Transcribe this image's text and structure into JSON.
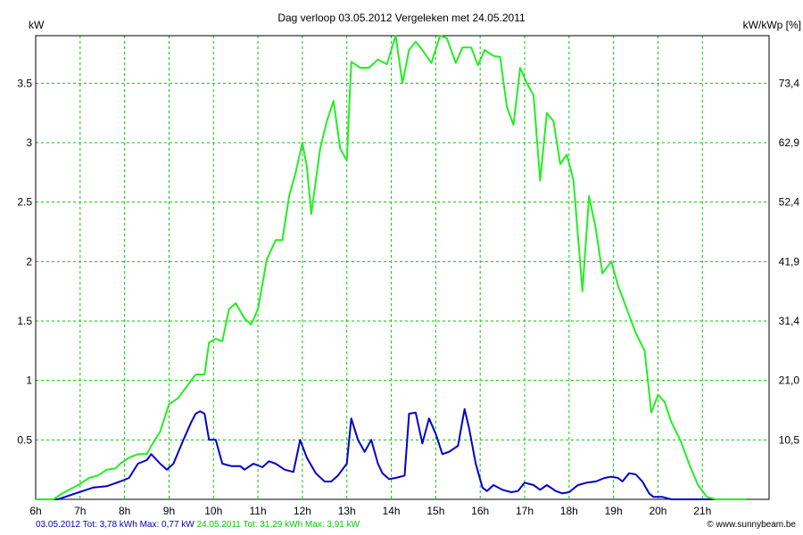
{
  "chart_data": {
    "type": "line",
    "title": "Dag  verloop 03.05.2012   Vergeleken met 24.05.2011",
    "ylabel_left": "kW",
    "ylabel_right": "kW/kWp [%]",
    "xlim": [
      6,
      22.5
    ],
    "ylim": [
      0,
      3.9
    ],
    "grid": true,
    "x_ticks": [
      {
        "x": 6,
        "label": "6h"
      },
      {
        "x": 7,
        "label": "7h"
      },
      {
        "x": 8,
        "label": "8h"
      },
      {
        "x": 9,
        "label": "9h"
      },
      {
        "x": 10,
        "label": "10h"
      },
      {
        "x": 11,
        "label": "11h"
      },
      {
        "x": 12,
        "label": "12h"
      },
      {
        "x": 13,
        "label": "13h"
      },
      {
        "x": 14,
        "label": "14h"
      },
      {
        "x": 15,
        "label": "15h"
      },
      {
        "x": 16,
        "label": "16h"
      },
      {
        "x": 17,
        "label": "17h"
      },
      {
        "x": 18,
        "label": "18h"
      },
      {
        "x": 19,
        "label": "19h"
      },
      {
        "x": 20,
        "label": "20h"
      },
      {
        "x": 21,
        "label": "21h"
      }
    ],
    "y_ticks_left": [
      {
        "v": 0.5,
        "label": "0.5"
      },
      {
        "v": 1.0,
        "label": "1"
      },
      {
        "v": 1.5,
        "label": "1.5"
      },
      {
        "v": 2.0,
        "label": "2"
      },
      {
        "v": 2.5,
        "label": "2.5"
      },
      {
        "v": 3.0,
        "label": "3"
      },
      {
        "v": 3.5,
        "label": "3.5"
      }
    ],
    "y_ticks_right": [
      {
        "v": 0.5,
        "label": "10,5"
      },
      {
        "v": 1.0,
        "label": "21,0"
      },
      {
        "v": 1.5,
        "label": "31,4"
      },
      {
        "v": 2.0,
        "label": "41,9"
      },
      {
        "v": 2.5,
        "label": "52,4"
      },
      {
        "v": 3.0,
        "label": "62,9"
      },
      {
        "v": 3.5,
        "label": "73,4"
      }
    ],
    "series": [
      {
        "name": "03.05.2012",
        "color": "#0000cc",
        "points": [
          [
            6.0,
            0.0
          ],
          [
            6.5,
            0.0
          ],
          [
            6.9,
            0.05
          ],
          [
            7.3,
            0.1
          ],
          [
            7.6,
            0.11
          ],
          [
            7.9,
            0.15
          ],
          [
            8.1,
            0.18
          ],
          [
            8.3,
            0.3
          ],
          [
            8.5,
            0.33
          ],
          [
            8.6,
            0.38
          ],
          [
            8.8,
            0.3
          ],
          [
            8.95,
            0.25
          ],
          [
            9.1,
            0.3
          ],
          [
            9.3,
            0.48
          ],
          [
            9.5,
            0.65
          ],
          [
            9.6,
            0.72
          ],
          [
            9.7,
            0.74
          ],
          [
            9.8,
            0.72
          ],
          [
            9.9,
            0.5
          ],
          [
            10.05,
            0.5
          ],
          [
            10.2,
            0.3
          ],
          [
            10.4,
            0.28
          ],
          [
            10.6,
            0.28
          ],
          [
            10.7,
            0.25
          ],
          [
            10.9,
            0.3
          ],
          [
            11.1,
            0.27
          ],
          [
            11.25,
            0.32
          ],
          [
            11.4,
            0.3
          ],
          [
            11.6,
            0.25
          ],
          [
            11.8,
            0.23
          ],
          [
            11.95,
            0.5
          ],
          [
            12.1,
            0.35
          ],
          [
            12.3,
            0.22
          ],
          [
            12.5,
            0.15
          ],
          [
            12.65,
            0.15
          ],
          [
            12.8,
            0.2
          ],
          [
            13.0,
            0.3
          ],
          [
            13.1,
            0.68
          ],
          [
            13.25,
            0.5
          ],
          [
            13.4,
            0.4
          ],
          [
            13.55,
            0.5
          ],
          [
            13.7,
            0.3
          ],
          [
            13.8,
            0.22
          ],
          [
            13.95,
            0.17
          ],
          [
            14.1,
            0.18
          ],
          [
            14.3,
            0.2
          ],
          [
            14.4,
            0.72
          ],
          [
            14.55,
            0.73
          ],
          [
            14.7,
            0.47
          ],
          [
            14.85,
            0.68
          ],
          [
            15.0,
            0.55
          ],
          [
            15.15,
            0.38
          ],
          [
            15.3,
            0.4
          ],
          [
            15.5,
            0.45
          ],
          [
            15.65,
            0.76
          ],
          [
            15.75,
            0.6
          ],
          [
            15.9,
            0.3
          ],
          [
            16.05,
            0.1
          ],
          [
            16.15,
            0.07
          ],
          [
            16.3,
            0.12
          ],
          [
            16.5,
            0.08
          ],
          [
            16.7,
            0.06
          ],
          [
            16.85,
            0.07
          ],
          [
            17.0,
            0.14
          ],
          [
            17.2,
            0.12
          ],
          [
            17.35,
            0.08
          ],
          [
            17.5,
            0.12
          ],
          [
            17.7,
            0.07
          ],
          [
            17.85,
            0.05
          ],
          [
            18.0,
            0.06
          ],
          [
            18.2,
            0.12
          ],
          [
            18.4,
            0.14
          ],
          [
            18.6,
            0.15
          ],
          [
            18.8,
            0.18
          ],
          [
            18.95,
            0.19
          ],
          [
            19.1,
            0.18
          ],
          [
            19.2,
            0.15
          ],
          [
            19.35,
            0.22
          ],
          [
            19.5,
            0.21
          ],
          [
            19.65,
            0.15
          ],
          [
            19.8,
            0.05
          ],
          [
            19.9,
            0.02
          ],
          [
            20.1,
            0.02
          ],
          [
            20.3,
            0.0
          ],
          [
            21.0,
            0.0
          ],
          [
            22.0,
            0.0
          ]
        ]
      },
      {
        "name": "24.05.2011",
        "color": "#22ee22",
        "points": [
          [
            6.0,
            0.0
          ],
          [
            6.4,
            0.0
          ],
          [
            6.6,
            0.05
          ],
          [
            6.8,
            0.09
          ],
          [
            7.0,
            0.13
          ],
          [
            7.2,
            0.18
          ],
          [
            7.4,
            0.2
          ],
          [
            7.6,
            0.25
          ],
          [
            7.8,
            0.26
          ],
          [
            7.9,
            0.3
          ],
          [
            8.1,
            0.35
          ],
          [
            8.3,
            0.38
          ],
          [
            8.5,
            0.38
          ],
          [
            8.6,
            0.45
          ],
          [
            8.8,
            0.57
          ],
          [
            9.0,
            0.8
          ],
          [
            9.2,
            0.85
          ],
          [
            9.4,
            0.95
          ],
          [
            9.6,
            1.05
          ],
          [
            9.8,
            1.05
          ],
          [
            9.9,
            1.32
          ],
          [
            10.05,
            1.35
          ],
          [
            10.2,
            1.33
          ],
          [
            10.35,
            1.6
          ],
          [
            10.5,
            1.65
          ],
          [
            10.7,
            1.52
          ],
          [
            10.85,
            1.47
          ],
          [
            11.0,
            1.6
          ],
          [
            11.2,
            2.02
          ],
          [
            11.4,
            2.18
          ],
          [
            11.55,
            2.18
          ],
          [
            11.7,
            2.55
          ],
          [
            11.85,
            2.75
          ],
          [
            12.0,
            3.0
          ],
          [
            12.1,
            2.8
          ],
          [
            12.2,
            2.4
          ],
          [
            12.4,
            2.95
          ],
          [
            12.55,
            3.18
          ],
          [
            12.7,
            3.35
          ],
          [
            12.85,
            2.95
          ],
          [
            13.0,
            2.85
          ],
          [
            13.1,
            3.68
          ],
          [
            13.3,
            3.63
          ],
          [
            13.5,
            3.63
          ],
          [
            13.7,
            3.7
          ],
          [
            13.9,
            3.66
          ],
          [
            14.1,
            3.9
          ],
          [
            14.25,
            3.5
          ],
          [
            14.4,
            3.78
          ],
          [
            14.55,
            3.85
          ],
          [
            14.7,
            3.78
          ],
          [
            14.9,
            3.67
          ],
          [
            15.1,
            3.9
          ],
          [
            15.25,
            3.88
          ],
          [
            15.45,
            3.67
          ],
          [
            15.6,
            3.8
          ],
          [
            15.8,
            3.8
          ],
          [
            15.95,
            3.65
          ],
          [
            16.1,
            3.78
          ],
          [
            16.3,
            3.73
          ],
          [
            16.45,
            3.72
          ],
          [
            16.6,
            3.3
          ],
          [
            16.75,
            3.15
          ],
          [
            16.9,
            3.63
          ],
          [
            17.05,
            3.5
          ],
          [
            17.2,
            3.4
          ],
          [
            17.35,
            2.68
          ],
          [
            17.5,
            3.25
          ],
          [
            17.65,
            3.18
          ],
          [
            17.8,
            2.82
          ],
          [
            17.95,
            2.9
          ],
          [
            18.1,
            2.68
          ],
          [
            18.3,
            1.75
          ],
          [
            18.45,
            2.55
          ],
          [
            18.6,
            2.28
          ],
          [
            18.75,
            1.9
          ],
          [
            18.95,
            2.0
          ],
          [
            19.1,
            1.8
          ],
          [
            19.3,
            1.6
          ],
          [
            19.5,
            1.4
          ],
          [
            19.7,
            1.25
          ],
          [
            19.85,
            0.73
          ],
          [
            20.0,
            0.88
          ],
          [
            20.15,
            0.82
          ],
          [
            20.3,
            0.65
          ],
          [
            20.5,
            0.5
          ],
          [
            20.7,
            0.3
          ],
          [
            20.9,
            0.12
          ],
          [
            21.1,
            0.02
          ],
          [
            21.3,
            0.0
          ],
          [
            22.0,
            0.0
          ]
        ]
      }
    ]
  },
  "footer": {
    "series1_label": "03.05.2012",
    "series1_tot": "Tot: 3,78 kWh",
    "series1_max": "Max: 0,77 kW",
    "series2_label": "24.05.2011",
    "series2_tot": "Tot: 31,29 kWh",
    "series2_max": "Max: 3,91 kW",
    "credit": "© www.sunnybeam.be"
  }
}
